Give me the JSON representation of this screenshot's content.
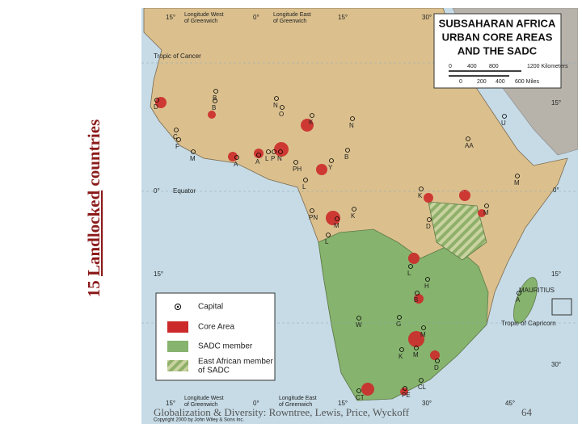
{
  "slide_title": {
    "number": "15",
    "underlined": "Landlocked",
    "rest": "countries"
  },
  "map": {
    "title_lines": [
      "SUBSAHARAN AFRICA",
      "URBAN CORE AREAS",
      "AND THE SADC"
    ],
    "scale": {
      "kilometers": [
        "0",
        "400",
        "800",
        "1200 Kilometers"
      ],
      "miles": [
        "0",
        "200",
        "400",
        "600 Miles"
      ]
    },
    "longitude_west": [
      "Longitude West",
      "of Greenwich"
    ],
    "longitude_east": [
      "Longitude East",
      "of Greenwich"
    ],
    "tropic_of_cancer": "Tropic of Cancer",
    "equator": "Equator",
    "tropic_of_capricorn": "Tropic of Capricorn",
    "mauritius": "MAURITIUS",
    "degree_labels": [
      "15°",
      "0°",
      "15°",
      "30°",
      "15°",
      "0°",
      "15°",
      "30°",
      "0°",
      "15°",
      "15°",
      "0°",
      "15°",
      "30°",
      "45°"
    ],
    "capitals": [
      "D",
      "B",
      "C",
      "F",
      "M",
      "A",
      "A",
      "L",
      "P",
      "N",
      "K",
      "N",
      "O",
      "N",
      "B",
      "PH",
      "Y",
      "L",
      "B",
      "PN",
      "K",
      "M",
      "L",
      "K",
      "M",
      "D",
      "U",
      "AA",
      "M",
      "L",
      "B",
      "H",
      "G",
      "W",
      "M",
      "K",
      "M",
      "D",
      "CL",
      "PE",
      "CT",
      "A"
    ],
    "legend": [
      "Capital",
      "Core Area",
      "SADC member",
      "East African member",
      "of SADC"
    ],
    "copyright": "Copyright 2000 by John Wiley & Sons Inc."
  },
  "footer": {
    "citation": "Globalization & Diversity: Rowntree, Lewis, Price, Wyckoff",
    "page": "64"
  }
}
